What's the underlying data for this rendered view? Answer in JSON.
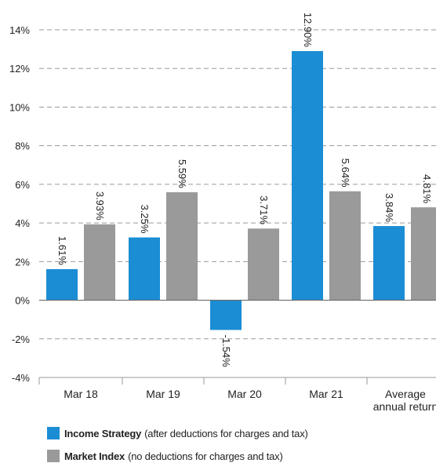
{
  "chart_data": {
    "type": "bar",
    "categories": [
      "Mar 18",
      "Mar 19",
      "Mar 20",
      "Mar 21",
      [
        "Average",
        "annual return"
      ]
    ],
    "series": [
      {
        "name": "Income Strategy",
        "description": "(after deductions for charges and tax)",
        "color": "#1b8dd4",
        "values": [
          1.61,
          3.25,
          -1.54,
          12.9,
          3.84
        ],
        "labels": [
          "1.61%",
          "3.25%",
          "-1.54%",
          "12.90%",
          "3.84%"
        ]
      },
      {
        "name": "Market Index",
        "description": "(no deductions for charges and tax)",
        "color": "#9a9a9a",
        "values": [
          3.93,
          5.59,
          3.71,
          5.64,
          4.81
        ],
        "labels": [
          "3.93%",
          "5.59%",
          "3.71%",
          "5.64%",
          "4.81%"
        ]
      }
    ],
    "ylim": [
      -4,
      14
    ],
    "yticks": [
      14,
      12,
      10,
      8,
      6,
      4,
      2,
      0,
      -2,
      -4
    ],
    "ytick_labels": [
      "14%",
      "12%",
      "10%",
      "8%",
      "6%",
      "4%",
      "2%",
      "0%",
      "-2%",
      "-4%"
    ],
    "grid": true,
    "legend_position": "bottom-left"
  }
}
